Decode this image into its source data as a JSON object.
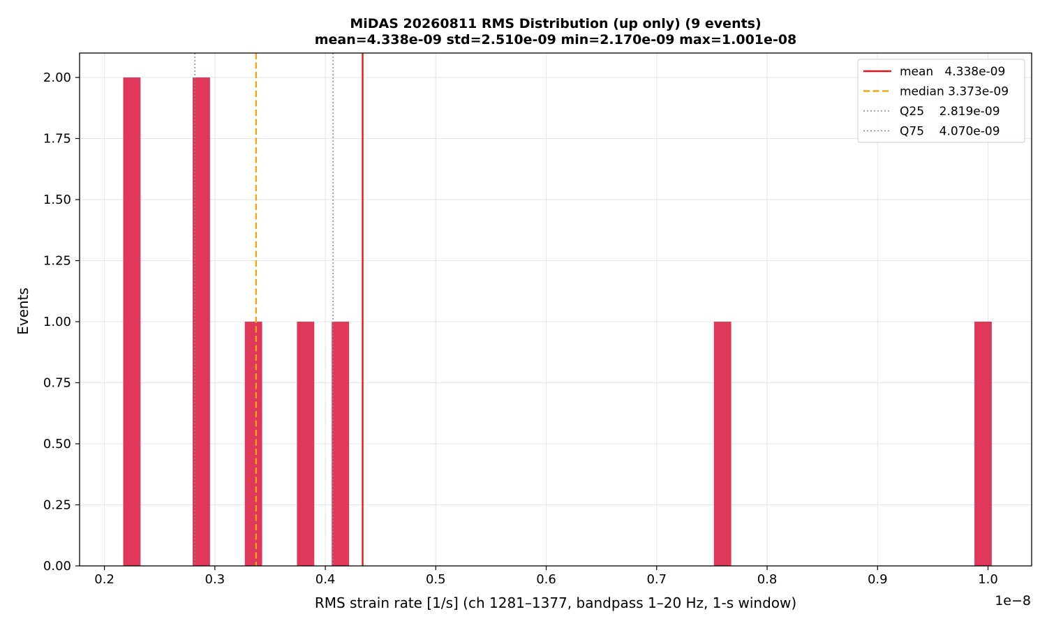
{
  "chart_data": {
    "type": "bar",
    "title_line1": "MiDAS 20260811  RMS Distribution  (up only)  (9 events)",
    "title_line2": "mean=4.338e-09  std=2.510e-09  min=2.170e-09  max=1.001e-08",
    "xlabel": "RMS strain rate [1/s]  (ch 1281–1377, bandpass 1–20 Hz, 1-s window)",
    "ylabel": "Events",
    "x_offset_label": "1e−8",
    "xlim": [
      0.1775,
      1.0395
    ],
    "ylim": [
      0,
      2.1
    ],
    "x_ticks": [
      0.2,
      0.3,
      0.4,
      0.5,
      0.6,
      0.7,
      0.8,
      0.9,
      1.0
    ],
    "x_tick_labels": [
      "0.2",
      "0.3",
      "0.4",
      "0.5",
      "0.6",
      "0.7",
      "0.8",
      "0.9",
      "1.0"
    ],
    "y_ticks": [
      0.0,
      0.25,
      0.5,
      0.75,
      1.0,
      1.25,
      1.5,
      1.75,
      2.0
    ],
    "y_tick_labels": [
      "0.00",
      "0.25",
      "0.50",
      "0.75",
      "1.00",
      "1.25",
      "1.50",
      "1.75",
      "2.00"
    ],
    "grid": true,
    "bar_color": "#e0385b",
    "bins": [
      {
        "x0": 0.217,
        "x1": 0.2327,
        "count": 2
      },
      {
        "x0": 0.2799,
        "x1": 0.2956,
        "count": 2
      },
      {
        "x0": 0.3271,
        "x1": 0.3428,
        "count": 1
      },
      {
        "x0": 0.3743,
        "x1": 0.39,
        "count": 1
      },
      {
        "x0": 0.4058,
        "x1": 0.4215,
        "count": 1
      },
      {
        "x0": 0.7518,
        "x1": 0.7675,
        "count": 1
      },
      {
        "x0": 0.9877,
        "x1": 1.0034,
        "count": 1
      }
    ],
    "reference_lines": [
      {
        "key": "mean",
        "x": 0.4338,
        "color": "#e8141d",
        "style": "solid",
        "legend_label": "mean   4.338e-09"
      },
      {
        "key": "median",
        "x": 0.3373,
        "color": "#f5a30f",
        "style": "dashed",
        "legend_label": "median 3.373e-09"
      },
      {
        "key": "q25",
        "x": 0.2819,
        "color": "#888888",
        "style": "dotted",
        "legend_label": "Q25    2.819e-09"
      },
      {
        "key": "q75",
        "x": 0.407,
        "color": "#888888",
        "style": "dotted",
        "legend_label": "Q75    4.070e-09"
      }
    ],
    "legend_position": "top-right"
  }
}
